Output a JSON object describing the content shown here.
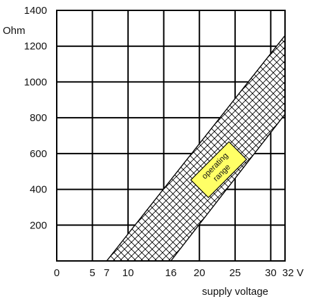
{
  "chart_data": {
    "type": "area",
    "title": "",
    "xlabel": "supply voltage",
    "ylabel": "Ohm",
    "x_unit": "V",
    "xlim": [
      0,
      32
    ],
    "ylim": [
      0,
      1400
    ],
    "x_ticks": [
      0,
      5,
      7,
      10,
      16,
      20,
      25,
      30,
      32
    ],
    "x_tick_labels": [
      "0",
      "5",
      "7",
      "10",
      "16",
      "20",
      "25",
      "30",
      "32 V"
    ],
    "x_grid": [
      0,
      5,
      10,
      15,
      20,
      25,
      30,
      32
    ],
    "y_ticks": [
      200,
      400,
      600,
      800,
      1000,
      1200,
      1400
    ],
    "y_tick_labels": [
      "200",
      "400",
      "600",
      "800",
      "1000",
      "1200",
      "1400"
    ],
    "grid": true,
    "series": [
      {
        "name": "operating range",
        "fill": "crosshatch",
        "upper_boundary": [
          {
            "x": 7,
            "y": 0
          },
          {
            "x": 32,
            "y": 1260
          }
        ],
        "lower_boundary": [
          {
            "x": 16,
            "y": 0
          },
          {
            "x": 32,
            "y": 820
          }
        ]
      }
    ],
    "annotations": [
      {
        "text_lines": [
          "operating",
          "range"
        ],
        "x": 22.7,
        "y": 510,
        "rotation": -45,
        "background": "#ffff66"
      }
    ]
  }
}
